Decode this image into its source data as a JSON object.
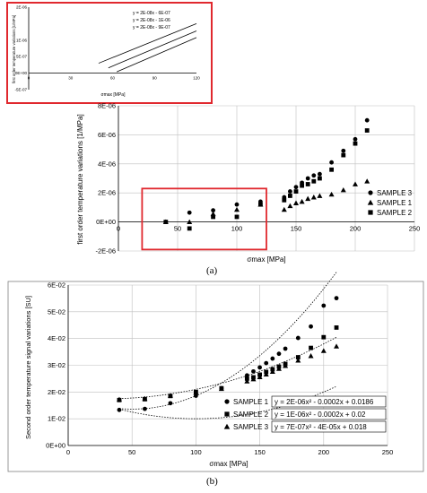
{
  "chart_data": [
    {
      "type": "line",
      "panel": "inset",
      "xlabel": "σmax [MPa]",
      "ylabel": "first order temperature variations [1/MPa]",
      "xlim": [
        0,
        120
      ],
      "ylim": [
        -5e-07,
        2e-06
      ],
      "x_ticks": [
        "0",
        "30",
        "60",
        "90",
        "120"
      ],
      "y_ticks": [
        "-5E-07",
        "0E+00",
        "5E-07",
        "1E-06",
        "2E-06"
      ],
      "grid": false,
      "annotations": [
        "y = 2E-08x - 6E-07",
        "y = 2E-08x - 1E-06",
        "y = 2E-08x - 9E-07"
      ],
      "series": [
        {
          "x": [
            50,
            120
          ],
          "values": [
            3e-07,
            1.5e-06
          ]
        },
        {
          "x": [
            57,
            120
          ],
          "values": [
            1.6e-07,
            1.28e-06
          ]
        },
        {
          "x": [
            63,
            120
          ],
          "values": [
            4e-08,
            1.08e-06
          ]
        }
      ]
    },
    {
      "type": "scatter",
      "panel": "a",
      "xlabel": "σmax [MPa]",
      "ylabel": "first order temperature variations [1/MPa]",
      "xlim": [
        0,
        250
      ],
      "ylim": [
        -2e-06,
        8e-06
      ],
      "x_ticks": [
        "0",
        "50",
        "100",
        "150",
        "200",
        "250"
      ],
      "y_ticks": [
        "-2E-06",
        "0E+00",
        "2E-06",
        "4E-06",
        "6E-06",
        "8E-06"
      ],
      "grid": true,
      "legend_position": "right",
      "highlight_box_x": [
        20,
        125
      ],
      "highlight_box_y": [
        -1.9e-06,
        2.3e-06
      ],
      "series": [
        {
          "name": "SAMPLE 3",
          "marker": "circle",
          "x": [
            40,
            60,
            80,
            100,
            120,
            140,
            145,
            150,
            155,
            160,
            165,
            170,
            180,
            190,
            200,
            210
          ],
          "values": [
            0.0,
            6.4e-07,
            8e-07,
            1.2e-06,
            1.4e-06,
            1.7e-06,
            2.1e-06,
            2.4e-06,
            2.7e-06,
            3e-06,
            3.2e-06,
            3.3e-06,
            4.1e-06,
            4.9e-06,
            5.7e-06,
            7e-06
          ]
        },
        {
          "name": "SAMPLE 1",
          "marker": "triangle",
          "x": [
            40,
            60,
            80,
            100,
            120,
            140,
            145,
            150,
            155,
            160,
            165,
            170,
            180,
            190,
            200,
            210
          ],
          "values": [
            0.0,
            0.0,
            5.5e-07,
            8.5e-07,
            1.2e-06,
            8.5e-07,
            1.1e-06,
            1.3e-06,
            1.4e-06,
            1.6e-06,
            1.7e-06,
            1.8e-06,
            1.9e-06,
            2.2e-06,
            2.6e-06,
            2.8e-06
          ]
        },
        {
          "name": "SAMPLE 2",
          "marker": "square",
          "x": [
            40,
            60,
            80,
            100,
            120,
            140,
            145,
            150,
            155,
            160,
            165,
            170,
            180,
            190,
            200,
            210
          ],
          "values": [
            0.0,
            -4.5e-07,
            3.5e-07,
            3.5e-07,
            1.2e-06,
            1.5e-06,
            1.8e-06,
            2.1e-06,
            2.5e-06,
            2.6e-06,
            2.8e-06,
            3e-06,
            3.6e-06,
            4.6e-06,
            5.4e-06,
            6.3e-06
          ]
        }
      ]
    },
    {
      "type": "scatter",
      "panel": "b",
      "xlabel": "σmax [MPa]",
      "ylabel": "Second order temperature signal variations [SU]",
      "xlim": [
        0,
        250
      ],
      "ylim": [
        0,
        0.06
      ],
      "x_ticks": [
        "0",
        "50",
        "100",
        "150",
        "200",
        "250"
      ],
      "y_ticks": [
        "0E+00",
        "1E-02",
        "2E-02",
        "3E-02",
        "4E-02",
        "5E-02",
        "6E-02"
      ],
      "grid": true,
      "legend_position": "bottom-right",
      "series": [
        {
          "name": "SAMPLE 1",
          "marker": "circle",
          "equation": "y = 2E-06x² - 0.0002x + 0.0186",
          "x": [
            40,
            60,
            80,
            100,
            120,
            140,
            145,
            150,
            155,
            160,
            165,
            170,
            180,
            190,
            200,
            210
          ],
          "values": [
            0.0133,
            0.0137,
            0.0158,
            0.0186,
            0.0214,
            0.0262,
            0.0277,
            0.0292,
            0.0308,
            0.0325,
            0.0343,
            0.0362,
            0.0402,
            0.0445,
            0.0523,
            0.0551
          ],
          "fit": [
            2e-06,
            -0.0002,
            0.0186
          ]
        },
        {
          "name": "SAMPLE 2",
          "marker": "square",
          "equation": "y = 1E-06x² - 0.0002x + 0.02",
          "x": [
            40,
            60,
            80,
            100,
            120,
            140,
            145,
            150,
            155,
            160,
            165,
            170,
            180,
            190,
            200,
            210
          ],
          "values": [
            0.017,
            0.0173,
            0.0185,
            0.02,
            0.0214,
            0.025,
            0.0255,
            0.0265,
            0.0275,
            0.0285,
            0.0295,
            0.0305,
            0.033,
            0.0365,
            0.0405,
            0.0441
          ],
          "fit": [
            1e-06,
            -0.0002,
            0.02
          ]
        },
        {
          "name": "SAMPLE 3",
          "marker": "triangle",
          "equation": "y = 7E-07x² - 4E-05x + 0.018",
          "x": [
            40,
            60,
            80,
            100,
            120,
            140,
            145,
            150,
            155,
            160,
            165,
            170,
            180,
            190,
            200,
            210
          ],
          "values": [
            0.0172,
            0.0175,
            0.0187,
            0.0198,
            0.0212,
            0.024,
            0.0248,
            0.0256,
            0.0266,
            0.0276,
            0.0287,
            0.0298,
            0.0318,
            0.0335,
            0.0354,
            0.0371
          ],
          "fit": [
            7e-07,
            -4e-05,
            0.018
          ]
        }
      ]
    }
  ],
  "figure": {
    "label_a": "(a)",
    "label_b": "(b)",
    "box_color": "#e0282e"
  }
}
